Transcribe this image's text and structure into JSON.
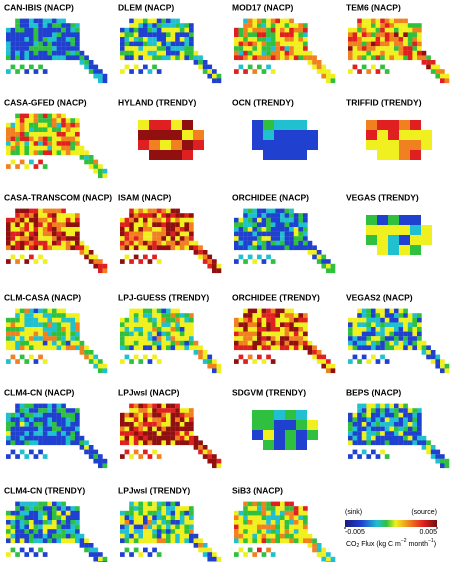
{
  "panels": [
    {
      "title": "CAN-IBIS (NACP)"
    },
    {
      "title": "DLEM (NACP)"
    },
    {
      "title": "MOD17 (NACP)"
    },
    {
      "title": "TEM6 (NACP)"
    },
    {
      "title": "CASA-GFED (NACP)"
    },
    {
      "title": "HYLAND (TRENDY)"
    },
    {
      "title": "OCN (TRENDY)"
    },
    {
      "title": "TRIFFID (TRENDY)"
    },
    {
      "title": "CASA-TRANSCOM (NACP)"
    },
    {
      "title": "ISAM (NACP)"
    },
    {
      "title": "ORCHIDEE (NACP)"
    },
    {
      "title": "VEGAS (TRENDY)"
    },
    {
      "title": "CLM-CASA (NACP)"
    },
    {
      "title": "LPJ-GUESS (TRENDY)"
    },
    {
      "title": "ORCHIDEE (TRENDY)"
    },
    {
      "title": "VEGAS2 (NACP)"
    },
    {
      "title": "CLM4-CN (NACP)"
    },
    {
      "title": "LPJwsl (NACP)"
    },
    {
      "title": "SDGVM (TRENDY)"
    },
    {
      "title": "BEPS (NACP)"
    },
    {
      "title": "CLM4-CN (TRENDY)"
    },
    {
      "title": "LPJwsl (TRENDY)"
    },
    {
      "title": "SiB3 (NACP)"
    }
  ],
  "colorbar": {
    "sink_label": "(sink)",
    "source_label": "(source)",
    "ticks": [
      -0.005,
      0.005
    ],
    "label_parts": [
      "CO",
      "2",
      " Flux (kg C m",
      "−2",
      " month",
      "−1",
      ")"
    ]
  }
}
